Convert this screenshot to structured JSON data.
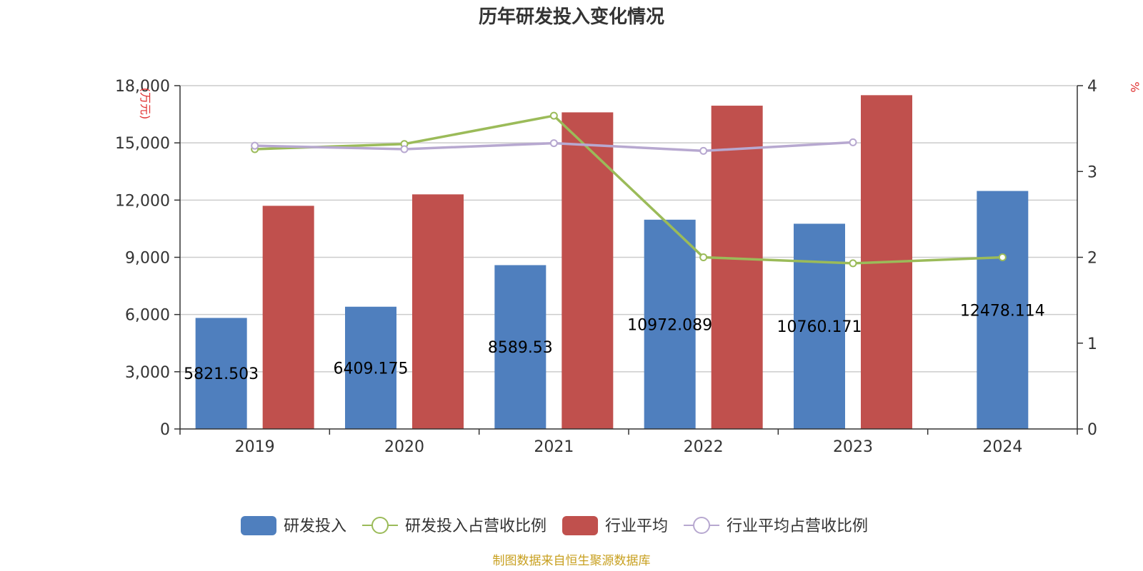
{
  "chart_data": {
    "type": "bar",
    "title": "历年研发投入变化情况",
    "source": "制图数据来自恒生聚源数据库",
    "categories": [
      "2019",
      "2020",
      "2021",
      "2022",
      "2023",
      "2024"
    ],
    "y_left": {
      "label": "(万元)",
      "ylim": [
        0,
        18000
      ],
      "ticks": [
        "0",
        "3,000",
        "6,000",
        "9,000",
        "12,000",
        "15,000",
        "18,000"
      ],
      "tick_values": [
        0,
        3000,
        6000,
        9000,
        12000,
        15000,
        18000
      ]
    },
    "y_right": {
      "label": "%",
      "ylim": [
        0,
        4
      ],
      "ticks": [
        "0",
        "1",
        "2",
        "3",
        "4"
      ],
      "tick_values": [
        0,
        1,
        2,
        3,
        4
      ]
    },
    "grid": true,
    "legend_position": "bottom",
    "series": [
      {
        "name": "研发投入",
        "type": "bar",
        "axis": "left",
        "color": "#4f7fbe",
        "values": [
          5821.503,
          6409.175,
          8589.53,
          10972.089,
          10760.171,
          12478.114
        ],
        "labels": [
          "5821.503",
          "6409.175",
          "8589.53",
          "10972.089",
          "10760.171",
          "12478.114"
        ]
      },
      {
        "name": "研发投入占营收比例",
        "type": "line",
        "axis": "right",
        "color": "#9bbb59",
        "values": [
          3.26,
          3.32,
          3.65,
          2.0,
          1.93,
          2.0
        ]
      },
      {
        "name": "行业平均",
        "type": "bar",
        "axis": "left",
        "color": "#c0504d",
        "values": [
          11700,
          12300,
          16600,
          16950,
          17500,
          null
        ]
      },
      {
        "name": "行业平均占营收比例",
        "type": "line",
        "axis": "right",
        "color": "#b7a8d0",
        "values": [
          3.3,
          3.26,
          3.33,
          3.24,
          3.34,
          null
        ]
      }
    ]
  }
}
